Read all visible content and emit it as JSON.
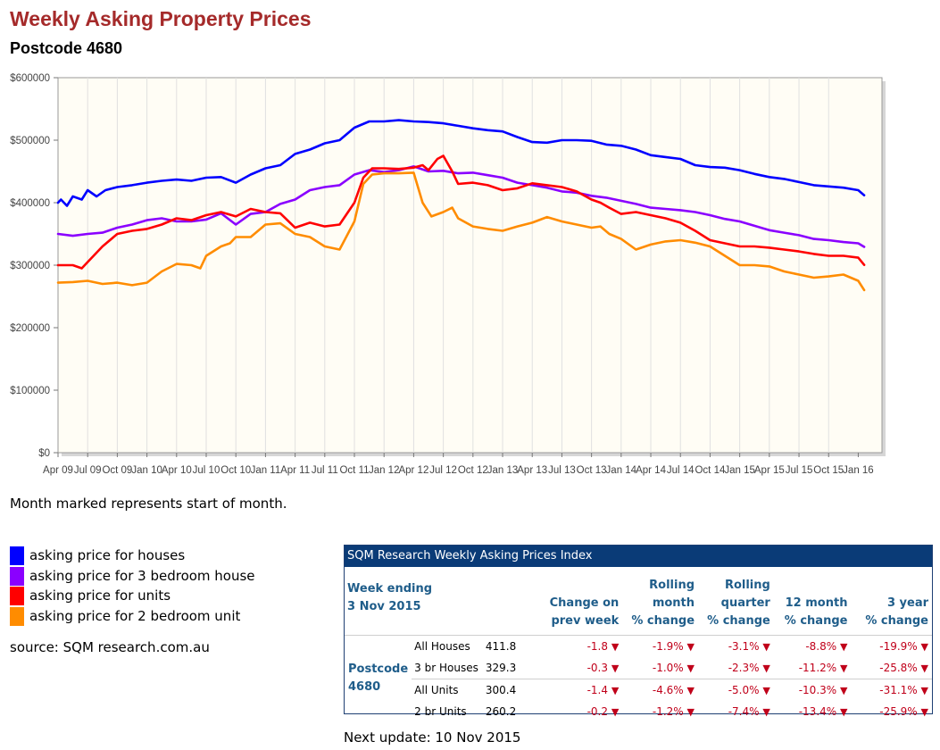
{
  "page": {
    "title": "Weekly Asking Property Prices",
    "subtitle": "Postcode 4680",
    "note": "Month marked represents start of month.",
    "source": "source: SQM research.com.au",
    "next_update": "Next update: 10 Nov 2015"
  },
  "legend": [
    {
      "label": "asking price for houses",
      "color": "#0000ff"
    },
    {
      "label": "asking price for 3 bedroom house",
      "color": "#8a00ff"
    },
    {
      "label": "asking price for units",
      "color": "#ff0000"
    },
    {
      "label": "asking price for 2 bedroom unit",
      "color": "#ff8c00"
    }
  ],
  "chart_data": {
    "type": "line",
    "title": "Weekly Asking Property Prices",
    "xlabel": "",
    "ylabel": "",
    "ylim": [
      0,
      600000
    ],
    "xlim": [
      0,
      27.8
    ],
    "yticks": [
      "$0",
      "$100000",
      "$200000",
      "$300000",
      "$400000",
      "$500000",
      "$600000"
    ],
    "xticks": [
      "Apr 09",
      "Jul 09",
      "Oct 09",
      "Jan 10",
      "Apr 10",
      "Jul 10",
      "Oct 10",
      "Jan 11",
      "Apr 11",
      "Jul 11",
      "Oct 11",
      "Jan 12",
      "Apr 12",
      "Jul 12",
      "Oct 12",
      "Jan 13",
      "Apr 13",
      "Jul 13",
      "Oct 13",
      "Jan 14",
      "Apr 14",
      "Jul 14",
      "Oct 14",
      "Jan 15",
      "Apr 15",
      "Jul 15",
      "Oct 15",
      "Jan 16"
    ],
    "x_unit": "quarters since Apr 09",
    "series": [
      {
        "name": "asking price for houses",
        "color": "#0000ff",
        "x": [
          0,
          0.1,
          0.3,
          0.5,
          0.8,
          1,
          1.3,
          1.6,
          2,
          2.5,
          3,
          3.5,
          4,
          4.5,
          5,
          5.5,
          6,
          6.5,
          7,
          7.5,
          8,
          8.5,
          9,
          9.5,
          10,
          10.5,
          11,
          11.5,
          12,
          12.5,
          13,
          13.5,
          14,
          14.5,
          15,
          15.5,
          16,
          16.5,
          17,
          17.5,
          18,
          18.5,
          19,
          19.5,
          20,
          20.5,
          21,
          21.5,
          22,
          22.5,
          23,
          23.5,
          24,
          24.5,
          25,
          25.5,
          26,
          26.5,
          27,
          27.2
        ],
        "values": [
          400000,
          405000,
          395000,
          410000,
          405000,
          420000,
          410000,
          420000,
          425000,
          428000,
          432000,
          435000,
          437000,
          435000,
          440000,
          441000,
          432000,
          445000,
          455000,
          460000,
          478000,
          485000,
          495000,
          500000,
          520000,
          530000,
          530000,
          532000,
          530000,
          529000,
          527000,
          523000,
          519000,
          516000,
          514000,
          505000,
          497000,
          496000,
          500000,
          500000,
          499000,
          493000,
          491000,
          485000,
          476000,
          473000,
          470000,
          460000,
          457000,
          456000,
          452000,
          446000,
          441000,
          438000,
          433000,
          428000,
          426000,
          424000,
          420000,
          411800
        ]
      },
      {
        "name": "asking price for 3 bedroom house",
        "color": "#8a00ff",
        "x": [
          0,
          0.5,
          1,
          1.5,
          2,
          2.5,
          3,
          3.5,
          4,
          4.5,
          5,
          5.5,
          6,
          6.5,
          7,
          7.5,
          8,
          8.5,
          9,
          9.5,
          10,
          10.5,
          11,
          11.5,
          12,
          12.5,
          13,
          13.5,
          14,
          14.5,
          15,
          15.5,
          16,
          16.5,
          17,
          17.5,
          18,
          18.5,
          19,
          19.5,
          20,
          20.5,
          21,
          21.5,
          22,
          22.5,
          23,
          23.5,
          24,
          24.5,
          25,
          25.5,
          26,
          26.5,
          27,
          27.2
        ],
        "values": [
          350000,
          347000,
          350000,
          352000,
          360000,
          365000,
          372000,
          375000,
          370000,
          370000,
          373000,
          383000,
          365000,
          382000,
          385000,
          398000,
          405000,
          420000,
          425000,
          428000,
          445000,
          452000,
          449000,
          452000,
          458000,
          450000,
          451000,
          447000,
          448000,
          444000,
          440000,
          432000,
          428000,
          424000,
          418000,
          416000,
          411000,
          408000,
          403000,
          398000,
          392000,
          390000,
          388000,
          385000,
          380000,
          374000,
          370000,
          363000,
          356000,
          352000,
          348000,
          342000,
          340000,
          337000,
          335000,
          329300
        ]
      },
      {
        "name": "asking price for units",
        "color": "#ff0000",
        "x": [
          0,
          0.5,
          0.8,
          1,
          1.5,
          2,
          2.5,
          3,
          3.5,
          4,
          4.5,
          5,
          5.5,
          6,
          6.5,
          7,
          7.5,
          8,
          8.5,
          9,
          9.5,
          10,
          10.3,
          10.6,
          11,
          11.5,
          12,
          12.3,
          12.5,
          12.8,
          13,
          13.3,
          13.5,
          14,
          14.5,
          15,
          15.5,
          16,
          16.5,
          17,
          17.5,
          18,
          18.3,
          18.6,
          19,
          19.5,
          20,
          20.5,
          21,
          21.5,
          22,
          22.5,
          23,
          23.5,
          24,
          24.5,
          25,
          25.5,
          26,
          26.5,
          27,
          27.2
        ],
        "values": [
          300000,
          300000,
          295000,
          305000,
          330000,
          350000,
          355000,
          358000,
          365000,
          375000,
          372000,
          380000,
          385000,
          378000,
          390000,
          385000,
          383000,
          360000,
          368000,
          362000,
          365000,
          400000,
          440000,
          455000,
          455000,
          454000,
          456000,
          460000,
          452000,
          470000,
          475000,
          450000,
          430000,
          432000,
          428000,
          420000,
          423000,
          431000,
          428000,
          425000,
          418000,
          405000,
          400000,
          392000,
          382000,
          385000,
          380000,
          375000,
          368000,
          355000,
          340000,
          335000,
          330000,
          330000,
          328000,
          325000,
          322000,
          318000,
          315000,
          315000,
          312000,
          300400
        ]
      },
      {
        "name": "asking price for 2 bedroom unit",
        "color": "#ff8c00",
        "x": [
          0,
          0.5,
          1,
          1.5,
          2,
          2.5,
          3,
          3.5,
          4,
          4.5,
          4.8,
          5,
          5.5,
          5.8,
          6,
          6.5,
          7,
          7.5,
          8,
          8.5,
          9,
          9.5,
          10,
          10.3,
          10.6,
          11,
          11.5,
          12,
          12.3,
          12.6,
          13,
          13.3,
          13.5,
          14,
          14.5,
          15,
          15.5,
          16,
          16.5,
          17,
          17.5,
          18,
          18.3,
          18.6,
          19,
          19.5,
          20,
          20.5,
          21,
          21.5,
          22,
          22.5,
          23,
          23.5,
          24,
          24.5,
          25,
          25.5,
          26,
          26.5,
          27,
          27.2
        ],
        "values": [
          272000,
          273000,
          275000,
          270000,
          272000,
          268000,
          272000,
          290000,
          302000,
          300000,
          295000,
          315000,
          330000,
          335000,
          345000,
          345000,
          365000,
          367000,
          350000,
          345000,
          330000,
          325000,
          370000,
          430000,
          445000,
          447000,
          447000,
          448000,
          400000,
          378000,
          385000,
          392000,
          375000,
          362000,
          358000,
          355000,
          362000,
          368000,
          377000,
          370000,
          365000,
          360000,
          362000,
          350000,
          342000,
          325000,
          333000,
          338000,
          340000,
          336000,
          330000,
          315000,
          300000,
          300000,
          298000,
          290000,
          285000,
          280000,
          282000,
          285000,
          275000,
          260200
        ]
      }
    ]
  },
  "table": {
    "header": "SQM Research Weekly Asking Prices Index",
    "week_label": "Week ending",
    "week_date": "3 Nov 2015",
    "col_headers": [
      [
        "Change on",
        "prev week"
      ],
      [
        "Rolling",
        "month",
        "% change"
      ],
      [
        "Rolling",
        "quarter",
        "% change"
      ],
      [
        "12 month",
        "% change"
      ],
      [
        "3 year",
        "% change"
      ]
    ],
    "postcode_label": "Postcode",
    "postcode_value": "4680",
    "down_arrow": "▼",
    "rows": [
      {
        "name": "All Houses",
        "value": "411.8",
        "changes": [
          "-1.8",
          "-1.9%",
          "-3.1%",
          "-8.8%",
          "-19.9%"
        ]
      },
      {
        "name": "3 br Houses",
        "value": "329.3",
        "changes": [
          "-0.3",
          "-1.0%",
          "-2.3%",
          "-11.2%",
          "-25.8%"
        ]
      },
      {
        "name": "All Units",
        "value": "300.4",
        "changes": [
          "-1.4",
          "-4.6%",
          "-5.0%",
          "-10.3%",
          "-31.1%"
        ]
      },
      {
        "name": "2 br Units",
        "value": "260.2",
        "changes": [
          "-0.2",
          "-1.2%",
          "-7.4%",
          "-13.4%",
          "-25.9%"
        ]
      }
    ]
  }
}
